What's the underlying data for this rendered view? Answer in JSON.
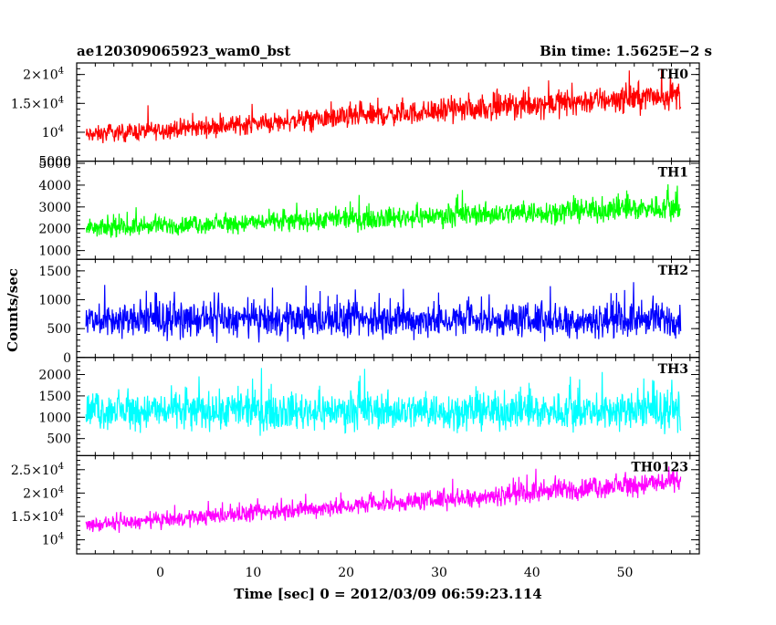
{
  "header": {
    "title": "ae120309065923_wam0_bst",
    "bin_time": "Bin time: 1.5625E−2 s"
  },
  "chart_data": {
    "type": "line",
    "title": "ae120309065923_wam0_bst",
    "subtitle": "Bin time: 1.5625E−2 s",
    "xlabel": "Time [sec] 0 = 2012/03/09 06:59:23.114",
    "ylabel": "Counts/sec",
    "xlim": [
      -9,
      58
    ],
    "x_ticks": [
      0,
      10,
      20,
      30,
      40,
      50
    ],
    "x_tick_labels": [
      "0",
      "10",
      "20",
      "30",
      "40",
      "50"
    ],
    "x_start": -8,
    "x_end": 56,
    "grid": false,
    "panels": [
      {
        "name": "TH0",
        "color": "#ff0000",
        "ylim": [
          5000,
          22000
        ],
        "y_ticks": [
          5000,
          10000,
          15000,
          20000
        ],
        "y_tick_labels": [
          {
            "type": "plain",
            "text": "5000"
          },
          {
            "type": "pow",
            "text": "10",
            "exp": "4"
          },
          {
            "type": "sci",
            "text": "1.5×10",
            "exp": "4"
          },
          {
            "type": "sci",
            "text": "2×10",
            "exp": "4"
          }
        ],
        "trend_start": 9500,
        "trend_end": 16500,
        "spread": 0.22
      },
      {
        "name": "TH1",
        "color": "#00ff00",
        "ylim": [
          600,
          5100
        ],
        "y_ticks": [
          1000,
          2000,
          3000,
          4000,
          5000
        ],
        "y_tick_labels": [
          {
            "type": "plain",
            "text": "1000"
          },
          {
            "type": "plain",
            "text": "2000"
          },
          {
            "type": "plain",
            "text": "3000"
          },
          {
            "type": "plain",
            "text": "4000"
          },
          {
            "type": "plain",
            "text": "5000"
          }
        ],
        "trend_start": 2000,
        "trend_end": 3000,
        "spread": 0.28
      },
      {
        "name": "TH2",
        "color": "#0000ff",
        "ylim": [
          0,
          1700
        ],
        "y_ticks": [
          0,
          500,
          1000,
          1500
        ],
        "y_tick_labels": [
          {
            "type": "plain",
            "text": "0"
          },
          {
            "type": "plain",
            "text": "500"
          },
          {
            "type": "plain",
            "text": "1000"
          },
          {
            "type": "plain",
            "text": "1500"
          }
        ],
        "trend_start": 650,
        "trend_end": 650,
        "spread": 0.65
      },
      {
        "name": "TH3",
        "color": "#00ffff",
        "ylim": [
          100,
          2400
        ],
        "y_ticks": [
          500,
          1000,
          1500,
          2000
        ],
        "y_tick_labels": [
          {
            "type": "plain",
            "text": "500"
          },
          {
            "type": "plain",
            "text": "1000"
          },
          {
            "type": "plain",
            "text": "1500"
          },
          {
            "type": "plain",
            "text": "2000"
          }
        ],
        "trend_start": 1150,
        "trend_end": 1150,
        "spread": 0.55
      },
      {
        "name": "TH0123",
        "color": "#ff00ff",
        "ylim": [
          7000,
          28000
        ],
        "y_ticks": [
          10000,
          15000,
          20000,
          25000
        ],
        "y_tick_labels": [
          {
            "type": "pow",
            "text": "10",
            "exp": "4"
          },
          {
            "type": "sci",
            "text": "1.5×10",
            "exp": "4"
          },
          {
            "type": "sci",
            "text": "2×10",
            "exp": "4"
          },
          {
            "type": "sci",
            "text": "2.5×10",
            "exp": "4"
          }
        ],
        "trend_start": 13000,
        "trend_end": 22500,
        "spread": 0.16
      }
    ]
  }
}
